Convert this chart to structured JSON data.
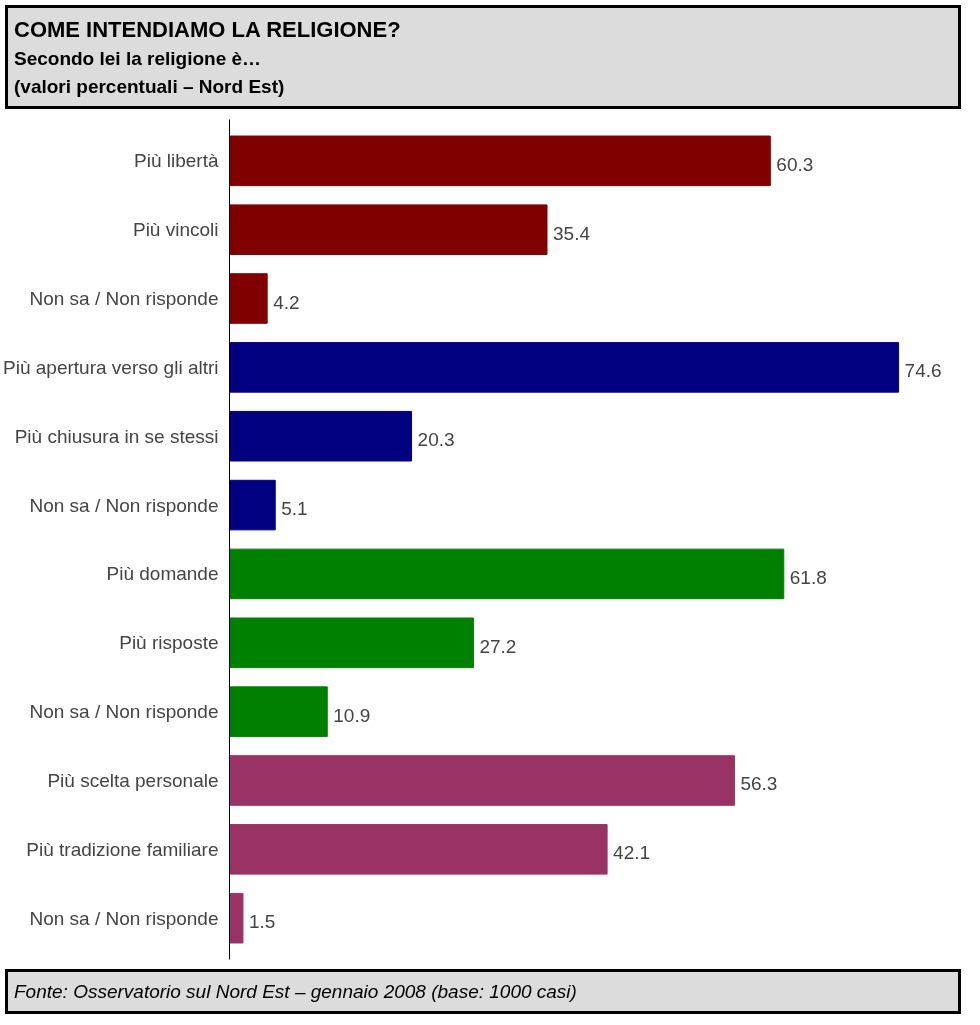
{
  "chart_data": {
    "type": "bar",
    "orientation": "horizontal",
    "title": "COME INTENDIAMO LA RELIGIONE?",
    "subtitle": "Secondo lei la religione è…\n(valori percentuali – Nord Est)",
    "categories": [
      "Più libertà",
      "Più vincoli",
      "Non sa / Non risponde",
      "Più apertura verso gli altri",
      "Più chiusura in se stessi",
      "Non sa / Non risponde",
      "Più domande",
      "Più risposte",
      "Non sa / Non risponde",
      "Più scelta personale",
      "Più tradizione familiare",
      "Non sa / Non risponde"
    ],
    "values": [
      60.3,
      35.4,
      4.2,
      74.6,
      20.3,
      5.1,
      61.8,
      27.2,
      10.9,
      56.3,
      42.1,
      1.5
    ],
    "colors": [
      "#800000",
      "#800000",
      "#800000",
      "#000080",
      "#000080",
      "#000080",
      "#008000",
      "#008000",
      "#008000",
      "#993366",
      "#993366",
      "#993366"
    ],
    "data_labels": true,
    "tick_labels": "y",
    "grid": false,
    "annotations": [
      "Fonte: Osservatorio sul Nord Est – gennaio 2008 (base: 1000 casi)"
    ]
  }
}
